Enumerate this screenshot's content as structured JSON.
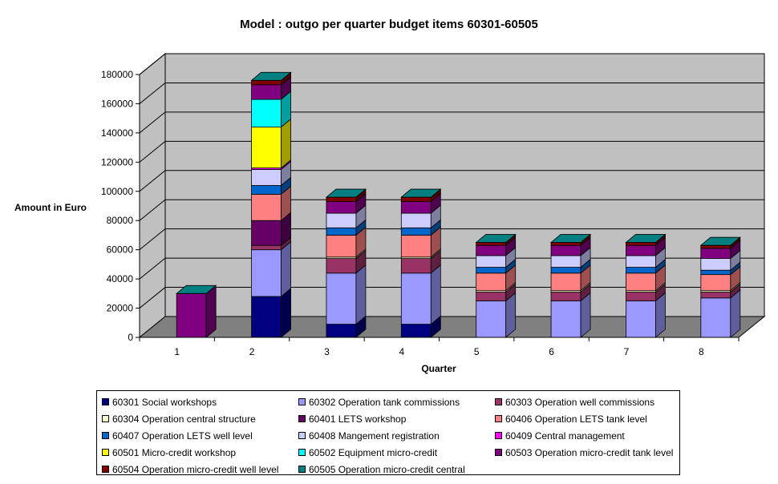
{
  "chart_data": {
    "type": "bar",
    "stacked": true,
    "three_d": true,
    "title": "Model : outgo per quarter budget items 60301-60505",
    "xlabel": "Quarter",
    "ylabel": "Amount in Euro",
    "categories": [
      "1",
      "2",
      "3",
      "4",
      "5",
      "6",
      "7",
      "8"
    ],
    "ylim": [
      0,
      180000
    ],
    "yticks": [
      "0",
      "20000",
      "40000",
      "60000",
      "80000",
      "100000",
      "120000",
      "140000",
      "160000",
      "180000"
    ],
    "grid": true,
    "legend_position": "bottom",
    "series": [
      {
        "name": "60301 Social workshops",
        "color": "#000080",
        "values": [
          0,
          28000,
          9000,
          9000,
          0,
          0,
          0,
          0
        ]
      },
      {
        "name": "60302 Operation tank commissions",
        "color": "#9999FF",
        "values": [
          0,
          32000,
          35000,
          35000,
          25000,
          25000,
          25000,
          27000
        ]
      },
      {
        "name": "60303 Operation well commissions",
        "color": "#993366",
        "values": [
          0,
          3000,
          10000,
          10000,
          6000,
          6000,
          6000,
          4000
        ]
      },
      {
        "name": "60304 Operation central structure",
        "color": "#FFFFCC",
        "values": [
          0,
          0,
          1000,
          1000,
          1000,
          1000,
          1000,
          1000
        ]
      },
      {
        "name": "60401 LETS workshop",
        "color": "#660066",
        "values": [
          0,
          17000,
          0,
          0,
          0,
          0,
          0,
          0
        ]
      },
      {
        "name": "60406 Operation LETS tank level",
        "color": "#FF8080",
        "values": [
          0,
          18000,
          15000,
          15000,
          12000,
          12000,
          12000,
          11000
        ]
      },
      {
        "name": "60407 Operation LETS well level",
        "color": "#0066CC",
        "values": [
          0,
          6000,
          5000,
          5000,
          4000,
          4000,
          4000,
          3000
        ]
      },
      {
        "name": "60408 Mangement registration",
        "color": "#CCCCFF",
        "values": [
          0,
          11000,
          10000,
          10000,
          8000,
          8000,
          8000,
          8000
        ]
      },
      {
        "name": "60409 Central management",
        "color": "#FF00FF",
        "values": [
          0,
          1000,
          0,
          0,
          0,
          0,
          0,
          0
        ]
      },
      {
        "name": "60501 Micro-credit workshop",
        "color": "#FFFF00",
        "values": [
          0,
          28000,
          0,
          0,
          0,
          0,
          0,
          0
        ]
      },
      {
        "name": "60502 Equipment micro-credit",
        "color": "#00FFFF",
        "values": [
          0,
          19000,
          0,
          0,
          0,
          0,
          0,
          0
        ]
      },
      {
        "name": "60503 Operation micro-credit tank level",
        "color": "#800080",
        "values": [
          30000,
          10000,
          8000,
          8000,
          7000,
          7000,
          7000,
          7000
        ]
      },
      {
        "name": "60504 Operation micro-credit well level",
        "color": "#800000",
        "values": [
          0,
          3000,
          3000,
          3000,
          2000,
          2000,
          2000,
          2000
        ]
      },
      {
        "name": "60505 Operation micro-credit central",
        "color": "#008080",
        "values": [
          0,
          0,
          0,
          0,
          0,
          0,
          0,
          0
        ]
      }
    ],
    "wall_color": "#C0C0C0",
    "floor_color": "#808080"
  }
}
